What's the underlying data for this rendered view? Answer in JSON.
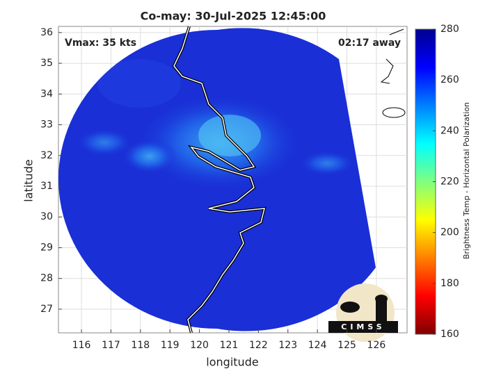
{
  "chart_data": {
    "type": "map",
    "title": "Co-may: 30-Jul-2025 12:45:00",
    "annotations": [
      "Vmax: 35 kts",
      "02:17 away"
    ],
    "xlabel": "longitude",
    "ylabel": "latitude",
    "xlim": [
      115.22,
      127.04
    ],
    "ylim": [
      26.23,
      36.2
    ],
    "xticks": [
      116,
      117,
      118,
      119,
      120,
      121,
      122,
      123,
      124,
      125,
      126
    ],
    "yticks": [
      27,
      28,
      29,
      30,
      31,
      32,
      33,
      34,
      35,
      36
    ],
    "grid": true,
    "colorbar": {
      "label": "Brightness Temp - Horizontal Polarization",
      "lim": [
        160,
        280
      ],
      "ticks": [
        160,
        180,
        200,
        220,
        240,
        260,
        280
      ],
      "colormap": "jet"
    },
    "logo": "CIMSS"
  }
}
